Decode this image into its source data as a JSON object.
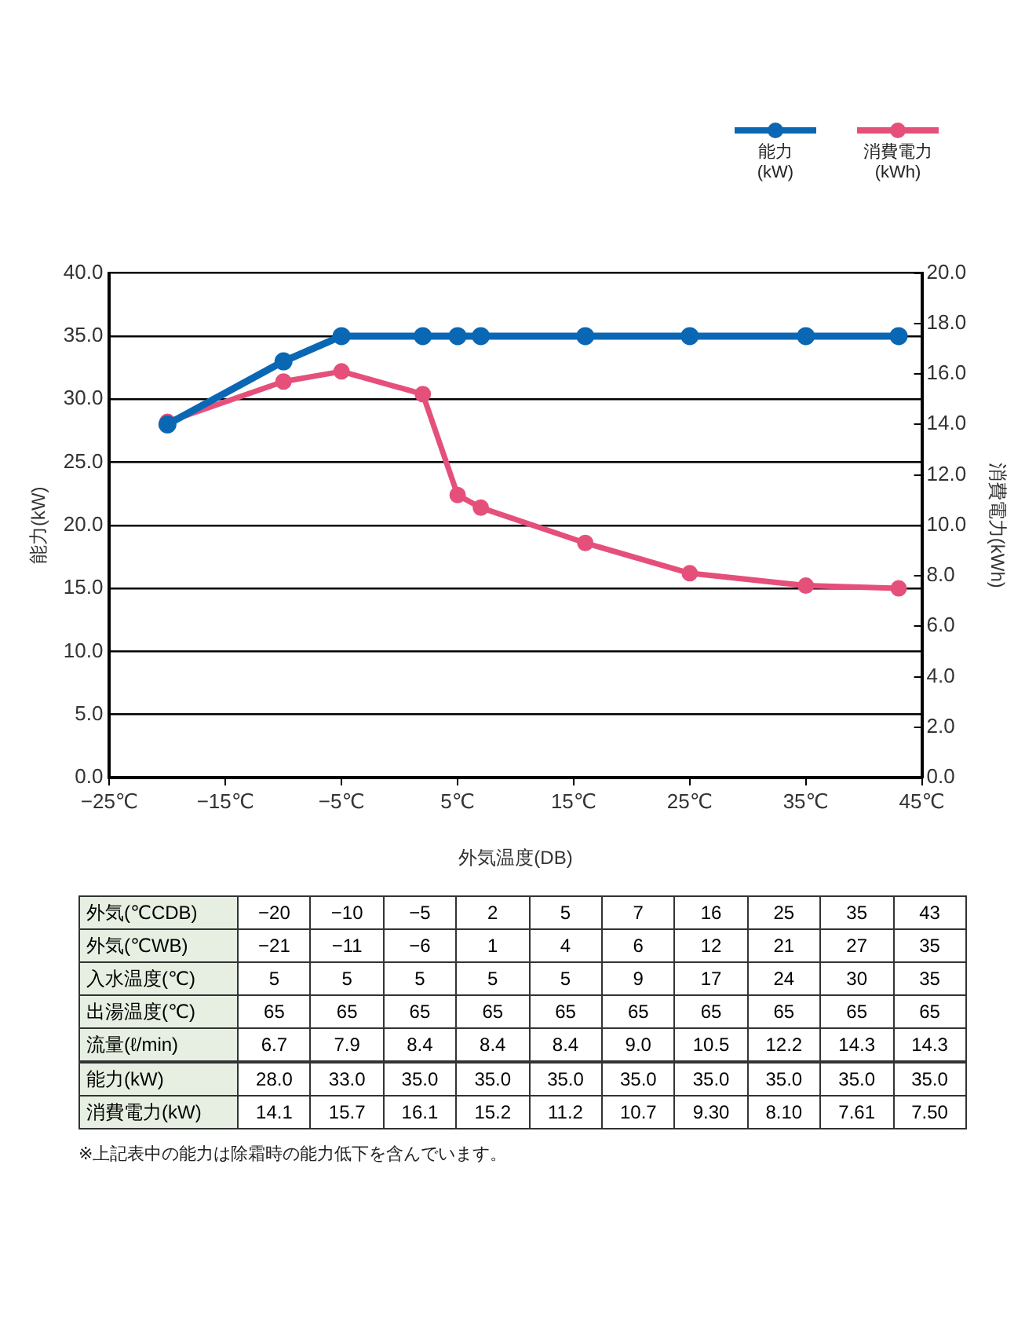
{
  "chart_data": [
    {
      "type": "line",
      "xlabel": "外気温度(DB)",
      "ylabel": "能力(kW)",
      "y2label": "消費電力(kWh)",
      "x": [
        -20,
        -10,
        -5,
        2,
        5,
        7,
        16,
        25,
        35,
        43
      ],
      "series": [
        {
          "name": "能力\n(kW)",
          "color": "#0a67b4",
          "values": [
            28.0,
            33.0,
            35.0,
            35.0,
            35.0,
            35.0,
            35.0,
            35.0,
            35.0,
            35.0
          ]
        },
        {
          "name": "消費電力\n(kWh)",
          "color": "#e5507a",
          "axis": "y2",
          "values": [
            14.1,
            15.7,
            16.1,
            15.2,
            11.2,
            10.7,
            9.3,
            8.1,
            7.61,
            7.5
          ]
        }
      ],
      "xlim": [
        -25,
        45
      ],
      "xticks": [
        {
          "value": -25,
          "label": "−25℃"
        },
        {
          "value": -15,
          "label": "−15℃"
        },
        {
          "value": -5,
          "label": "−5℃"
        },
        {
          "value": 5,
          "label": "5℃"
        },
        {
          "value": 15,
          "label": "15℃"
        },
        {
          "value": 25,
          "label": "25℃"
        },
        {
          "value": 35,
          "label": "35℃"
        },
        {
          "value": 45,
          "label": "45℃"
        }
      ],
      "ylim": [
        0,
        40
      ],
      "yticks": [
        {
          "value": 0,
          "label": "0.0"
        },
        {
          "value": 5,
          "label": "5.0"
        },
        {
          "value": 10,
          "label": "10.0"
        },
        {
          "value": 15,
          "label": "15.0"
        },
        {
          "value": 20,
          "label": "20.0"
        },
        {
          "value": 25,
          "label": "25.0"
        },
        {
          "value": 30,
          "label": "30.0"
        },
        {
          "value": 35,
          "label": "35.0"
        },
        {
          "value": 40,
          "label": "40.0"
        }
      ],
      "y2lim": [
        0,
        20
      ],
      "y2ticks": [
        {
          "value": 0,
          "label": "0.0"
        },
        {
          "value": 2,
          "label": "2.0"
        },
        {
          "value": 4,
          "label": "4.0"
        },
        {
          "value": 6,
          "label": "6.0"
        },
        {
          "value": 8,
          "label": "8.0"
        },
        {
          "value": 10,
          "label": "10.0"
        },
        {
          "value": 12,
          "label": "12.0"
        },
        {
          "value": 14,
          "label": "14.0"
        },
        {
          "value": 16,
          "label": "16.0"
        },
        {
          "value": 18,
          "label": "18.0"
        },
        {
          "value": 20,
          "label": "20.0"
        }
      ],
      "grid": "y",
      "legend": "top right",
      "marker": "circle",
      "line_style": "solid"
    },
    {
      "type": "other",
      "annotations": [
        "外気(℃CDB) −20 −10 −5 2 5 7 16 25 35 43",
        "外気(℃WB) −21 −11 −6 1 4 6 12 21 27 35",
        "入水温度(℃) 5 5 5 5 5 9 17 24 30 35",
        "出湯温度(℃) 65 65 65 65 65 65 65 65 65 65",
        "流量(ℓ/min) 6.7 7.9 8.4 8.4 8.4 9.0 10.5 12.2 14.3 14.3",
        "能力(kW) 28.0 33.0 35.0 35.0 35.0 35.0 35.0 35.0 35.0 35.0",
        "消費電力(kW) 14.1 15.7 16.1 15.2 11.2 10.7 9.30 8.10 7.61 7.50",
        "※上記表中の能力は除霜時の能力低下を含んでいます。"
      ]
    }
  ]
}
